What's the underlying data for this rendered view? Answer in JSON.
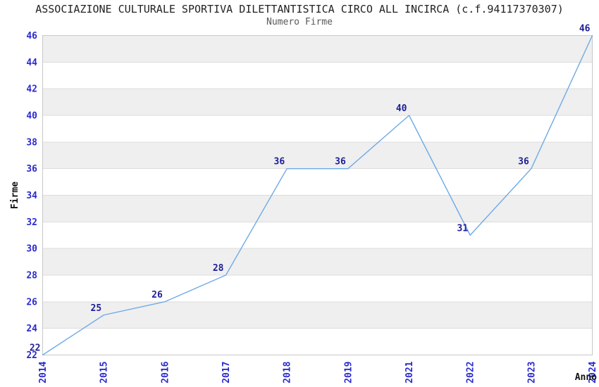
{
  "header": {
    "title": "ASSOCIAZIONE CULTURALE SPORTIVA DILETTANTISTICA CIRCO ALL INCIRCA (c.f.94117370307)",
    "subtitle": "Numero Firme"
  },
  "chart_data": {
    "type": "line",
    "title": "ASSOCIAZIONE CULTURALE SPORTIVA DILETTANTISTICA CIRCO ALL INCIRCA (c.f.94117370307)",
    "subtitle": "Numero Firme",
    "categories": [
      "2014",
      "2015",
      "2016",
      "2017",
      "2018",
      "2019",
      "2021",
      "2022",
      "2023",
      "2024"
    ],
    "values": [
      22,
      25,
      26,
      28,
      36,
      36,
      40,
      31,
      36,
      46
    ],
    "xlabel": "Anno",
    "ylabel": "Firme",
    "ylim": [
      22,
      46
    ],
    "yticks": [
      22,
      24,
      26,
      28,
      30,
      32,
      34,
      36,
      38,
      40,
      42,
      44,
      46
    ],
    "grid": "horizontal-bands-alternating",
    "legend": "none",
    "colors": {
      "line": "#6EAAE6",
      "band": "#efefef",
      "grid": "#dcdcdc",
      "border": "#c8c8c8",
      "tick_label": "#2a2ad0",
      "data_label": "#1e1e96",
      "title": "#222222",
      "subtitle": "#595959",
      "axis_label": "#111111"
    }
  }
}
